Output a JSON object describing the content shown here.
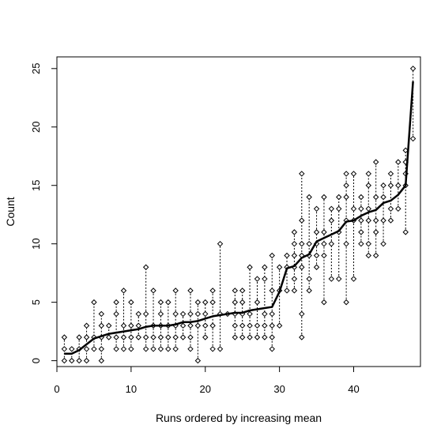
{
  "chart_data": {
    "type": "scatter",
    "title": "",
    "xlabel": "Runs ordered by increasing mean",
    "ylabel": "Count",
    "xlim": [
      0,
      49
    ],
    "ylim": [
      -0.5,
      26
    ],
    "x_ticks": [
      0,
      10,
      20,
      30,
      40
    ],
    "y_ticks": [
      0,
      5,
      10,
      15,
      20,
      25
    ],
    "grid": false,
    "series": [
      {
        "kind": "points-and-ranges",
        "style": "open diamonds with dotted vertical range lines",
        "runs": [
          {
            "x": 1,
            "values": [
              0,
              1,
              2
            ]
          },
          {
            "x": 2,
            "values": [
              0,
              1
            ]
          },
          {
            "x": 3,
            "values": [
              0,
              1,
              2
            ]
          },
          {
            "x": 4,
            "values": [
              0,
              1,
              2,
              3
            ]
          },
          {
            "x": 5,
            "values": [
              1,
              2,
              5
            ]
          },
          {
            "x": 6,
            "values": [
              0,
              1,
              2,
              3,
              4
            ]
          },
          {
            "x": 7,
            "values": [
              2,
              3
            ]
          },
          {
            "x": 8,
            "values": [
              1,
              2,
              4,
              5
            ]
          },
          {
            "x": 9,
            "values": [
              1,
              2,
              3,
              6
            ]
          },
          {
            "x": 10,
            "values": [
              1,
              2,
              3,
              5
            ]
          },
          {
            "x": 11,
            "values": [
              2,
              3,
              4
            ]
          },
          {
            "x": 12,
            "values": [
              1,
              2,
              4,
              8
            ]
          },
          {
            "x": 13,
            "values": [
              1,
              2,
              3,
              6
            ]
          },
          {
            "x": 14,
            "values": [
              1,
              2,
              3,
              4,
              5
            ]
          },
          {
            "x": 15,
            "values": [
              1,
              2,
              3,
              5
            ]
          },
          {
            "x": 16,
            "values": [
              1,
              2,
              3,
              4,
              6
            ]
          },
          {
            "x": 17,
            "values": [
              2,
              3,
              4
            ]
          },
          {
            "x": 18,
            "values": [
              1,
              2,
              3,
              4,
              6
            ]
          },
          {
            "x": 19,
            "values": [
              0,
              3,
              4,
              5
            ]
          },
          {
            "x": 20,
            "values": [
              2,
              3,
              4,
              5
            ]
          },
          {
            "x": 21,
            "values": [
              1,
              3,
              5,
              6
            ]
          },
          {
            "x": 22,
            "values": [
              1,
              4,
              10
            ]
          },
          {
            "x": 23,
            "values": [
              4
            ]
          },
          {
            "x": 24,
            "values": [
              2,
              3,
              4,
              5,
              6
            ]
          },
          {
            "x": 25,
            "values": [
              2,
              3,
              4,
              5,
              6
            ]
          },
          {
            "x": 26,
            "values": [
              2,
              3,
              4,
              8
            ]
          },
          {
            "x": 27,
            "values": [
              2,
              3,
              5,
              7
            ]
          },
          {
            "x": 28,
            "values": [
              2,
              3,
              4,
              7,
              8
            ]
          },
          {
            "x": 29,
            "values": [
              1,
              2,
              3,
              4,
              6,
              9
            ]
          },
          {
            "x": 30,
            "values": [
              3,
              6,
              8
            ]
          },
          {
            "x": 31,
            "values": [
              6,
              8,
              9
            ]
          },
          {
            "x": 32,
            "values": [
              6,
              7,
              8,
              9,
              10,
              11
            ]
          },
          {
            "x": 33,
            "values": [
              2,
              4,
              8,
              9,
              10,
              12,
              16
            ]
          },
          {
            "x": 34,
            "values": [
              6,
              7,
              9,
              10,
              14
            ]
          },
          {
            "x": 35,
            "values": [
              8,
              9,
              10,
              11,
              13
            ]
          },
          {
            "x": 36,
            "values": [
              5,
              9,
              10,
              11,
              14
            ]
          },
          {
            "x": 37,
            "values": [
              7,
              10,
              12,
              13
            ]
          },
          {
            "x": 38,
            "values": [
              7,
              11,
              13,
              14
            ]
          },
          {
            "x": 39,
            "values": [
              5,
              10,
              12,
              14,
              15,
              16
            ]
          },
          {
            "x": 40,
            "values": [
              7,
              12,
              13,
              16
            ]
          },
          {
            "x": 41,
            "values": [
              10,
              11,
              12,
              13,
              14
            ]
          },
          {
            "x": 42,
            "values": [
              9,
              10,
              12,
              13,
              15,
              16
            ]
          },
          {
            "x": 43,
            "values": [
              9,
              11,
              12,
              14,
              17
            ]
          },
          {
            "x": 44,
            "values": [
              10,
              12,
              14,
              15
            ]
          },
          {
            "x": 45,
            "values": [
              12,
              13,
              15,
              16
            ]
          },
          {
            "x": 46,
            "values": [
              13,
              15,
              17
            ]
          },
          {
            "x": 47,
            "values": [
              11,
              15,
              16,
              17,
              18
            ]
          },
          {
            "x": 48,
            "values": [
              19,
              25
            ]
          }
        ]
      },
      {
        "kind": "line",
        "style": "thick solid black line of run means",
        "x": [
          1,
          2,
          3,
          4,
          5,
          6,
          7,
          8,
          9,
          10,
          11,
          12,
          13,
          14,
          15,
          16,
          17,
          18,
          19,
          20,
          21,
          22,
          23,
          24,
          25,
          26,
          27,
          28,
          29,
          30,
          31,
          32,
          33,
          34,
          35,
          36,
          37,
          38,
          39,
          40,
          41,
          42,
          43,
          44,
          45,
          46,
          47,
          48
        ],
        "y": [
          0.6,
          0.6,
          0.9,
          1.4,
          1.9,
          2.1,
          2.3,
          2.4,
          2.5,
          2.6,
          2.7,
          2.9,
          3.0,
          3.0,
          3.0,
          3.1,
          3.3,
          3.3,
          3.4,
          3.6,
          3.8,
          3.9,
          4.0,
          4.1,
          4.1,
          4.3,
          4.4,
          4.5,
          4.6,
          5.9,
          7.9,
          8.1,
          8.8,
          9.1,
          10.2,
          10.5,
          10.8,
          11.1,
          11.9,
          12.0,
          12.4,
          12.7,
          12.9,
          13.5,
          13.7,
          14.2,
          15.0,
          23.9
        ]
      }
    ]
  }
}
